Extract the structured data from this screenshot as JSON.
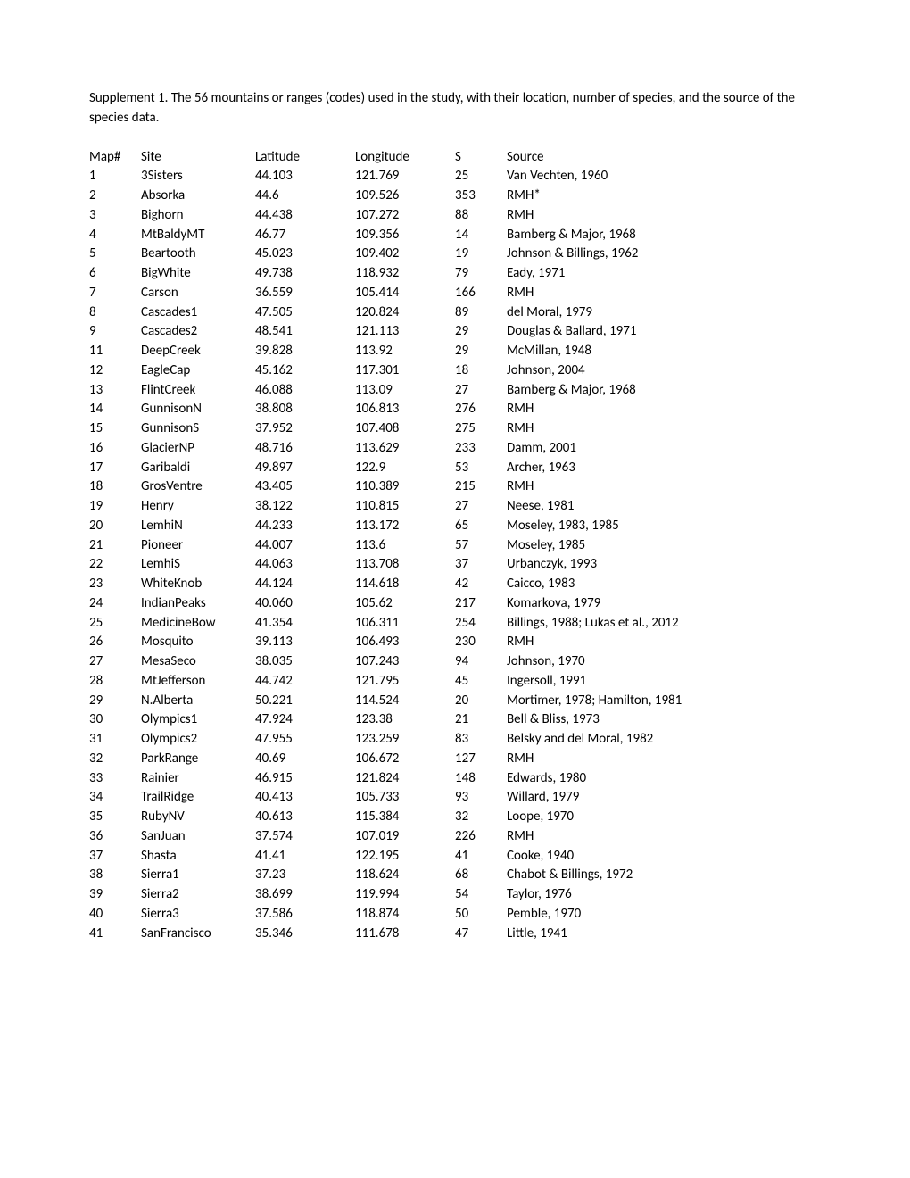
{
  "caption": "Supplement 1.  The 56 mountains or ranges (codes) used in the study, with their location, number of species, and the source of the species data.",
  "columns": [
    "Map#",
    "Site",
    "Latitude",
    "Longitude",
    "S",
    "Source"
  ],
  "rows": [
    [
      "1",
      "3Sisters",
      "44.103",
      "121.769",
      "25",
      "Van Vechten, 1960"
    ],
    [
      "2",
      "Absorka",
      "44.6",
      "109.526",
      "353",
      "RMH*"
    ],
    [
      "3",
      "Bighorn",
      "44.438",
      "107.272",
      "88",
      "RMH"
    ],
    [
      "4",
      "MtBaldyMT",
      "46.77",
      "109.356",
      "14",
      "Bamberg & Major, 1968"
    ],
    [
      "5",
      "Beartooth",
      "45.023",
      "109.402",
      "19",
      "Johnson & Billings, 1962"
    ],
    [
      "6",
      "BigWhite",
      "49.738",
      "118.932",
      "79",
      "Eady, 1971"
    ],
    [
      "7",
      "Carson",
      "36.559",
      "105.414",
      "166",
      "RMH"
    ],
    [
      "8",
      "Cascades1",
      "47.505",
      "120.824",
      "89",
      "del Moral, 1979"
    ],
    [
      "9",
      "Cascades2",
      "48.541",
      "121.113",
      "29",
      "Douglas & Ballard, 1971"
    ],
    [
      "11",
      "DeepCreek",
      "39.828",
      "113.92",
      "29",
      "McMillan, 1948"
    ],
    [
      "12",
      "EagleCap",
      "45.162",
      "117.301",
      "18",
      "Johnson, 2004"
    ],
    [
      "13",
      "FlintCreek",
      "46.088",
      "113.09",
      "27",
      "Bamberg & Major, 1968"
    ],
    [
      "14",
      "GunnisonN",
      "38.808",
      "106.813",
      "276",
      "RMH"
    ],
    [
      "15",
      "GunnisonS",
      "37.952",
      "107.408",
      "275",
      "RMH"
    ],
    [
      "16",
      "GlacierNP",
      "48.716",
      "113.629",
      "233",
      "Damm, 2001"
    ],
    [
      "17",
      "Garibaldi",
      "49.897",
      "122.9",
      "53",
      "Archer, 1963"
    ],
    [
      "18",
      "GrosVentre",
      "43.405",
      "110.389",
      "215",
      "RMH"
    ],
    [
      "19",
      "Henry",
      "38.122",
      "110.815",
      "27",
      "Neese, 1981"
    ],
    [
      "20",
      "LemhiN",
      "44.233",
      "113.172",
      "65",
      "Moseley, 1983, 1985"
    ],
    [
      "21",
      "Pioneer",
      "44.007",
      "113.6",
      "57",
      "Moseley, 1985"
    ],
    [
      "22",
      "LemhiS",
      "44.063",
      "113.708",
      "37",
      "Urbanczyk, 1993"
    ],
    [
      "23",
      "WhiteKnob",
      "44.124",
      "114.618",
      "42",
      "Caicco, 1983"
    ],
    [
      "24",
      "IndianPeaks",
      "40.060",
      "105.62",
      "217",
      "Komarkova, 1979"
    ],
    [
      "25",
      "MedicineBow",
      "41.354",
      "106.311",
      "254",
      "Billings, 1988; Lukas et al., 2012"
    ],
    [
      "26",
      "Mosquito",
      "39.113",
      "106.493",
      "230",
      "RMH"
    ],
    [
      "27",
      "MesaSeco",
      "38.035",
      "107.243",
      "94",
      "Johnson, 1970"
    ],
    [
      "28",
      "MtJefferson",
      "44.742",
      "121.795",
      "45",
      "Ingersoll, 1991"
    ],
    [
      "29",
      "N.Alberta",
      "50.221",
      "114.524",
      "20",
      "Mortimer, 1978; Hamilton, 1981"
    ],
    [
      "30",
      "Olympics1",
      "47.924",
      "123.38",
      "21",
      "Bell & Bliss, 1973"
    ],
    [
      "31",
      "Olympics2",
      "47.955",
      "123.259",
      "83",
      "Belsky and del Moral, 1982"
    ],
    [
      "32",
      "ParkRange",
      "40.69",
      "106.672",
      "127",
      "RMH"
    ],
    [
      "33",
      "Rainier",
      "46.915",
      "121.824",
      "148",
      "Edwards, 1980"
    ],
    [
      "34",
      "TrailRidge",
      "40.413",
      "105.733",
      "93",
      "Willard, 1979"
    ],
    [
      "35",
      "RubyNV",
      "40.613",
      "115.384",
      "32",
      "Loope, 1970"
    ],
    [
      "36",
      "SanJuan",
      "37.574",
      "107.019",
      "226",
      "RMH"
    ],
    [
      "37",
      "Shasta",
      "41.41",
      "122.195",
      "41",
      "Cooke, 1940"
    ],
    [
      "38",
      "Sierra1",
      "37.23",
      "118.624",
      "68",
      "Chabot & Billings, 1972"
    ],
    [
      "39",
      "Sierra2",
      "38.699",
      "119.994",
      "54",
      "Taylor, 1976"
    ],
    [
      "40",
      "Sierra3",
      "37.586",
      "118.874",
      "50",
      "Pemble, 1970"
    ],
    [
      "41",
      "SanFrancisco",
      "35.346",
      "111.678",
      "47",
      "Little, 1941"
    ]
  ]
}
